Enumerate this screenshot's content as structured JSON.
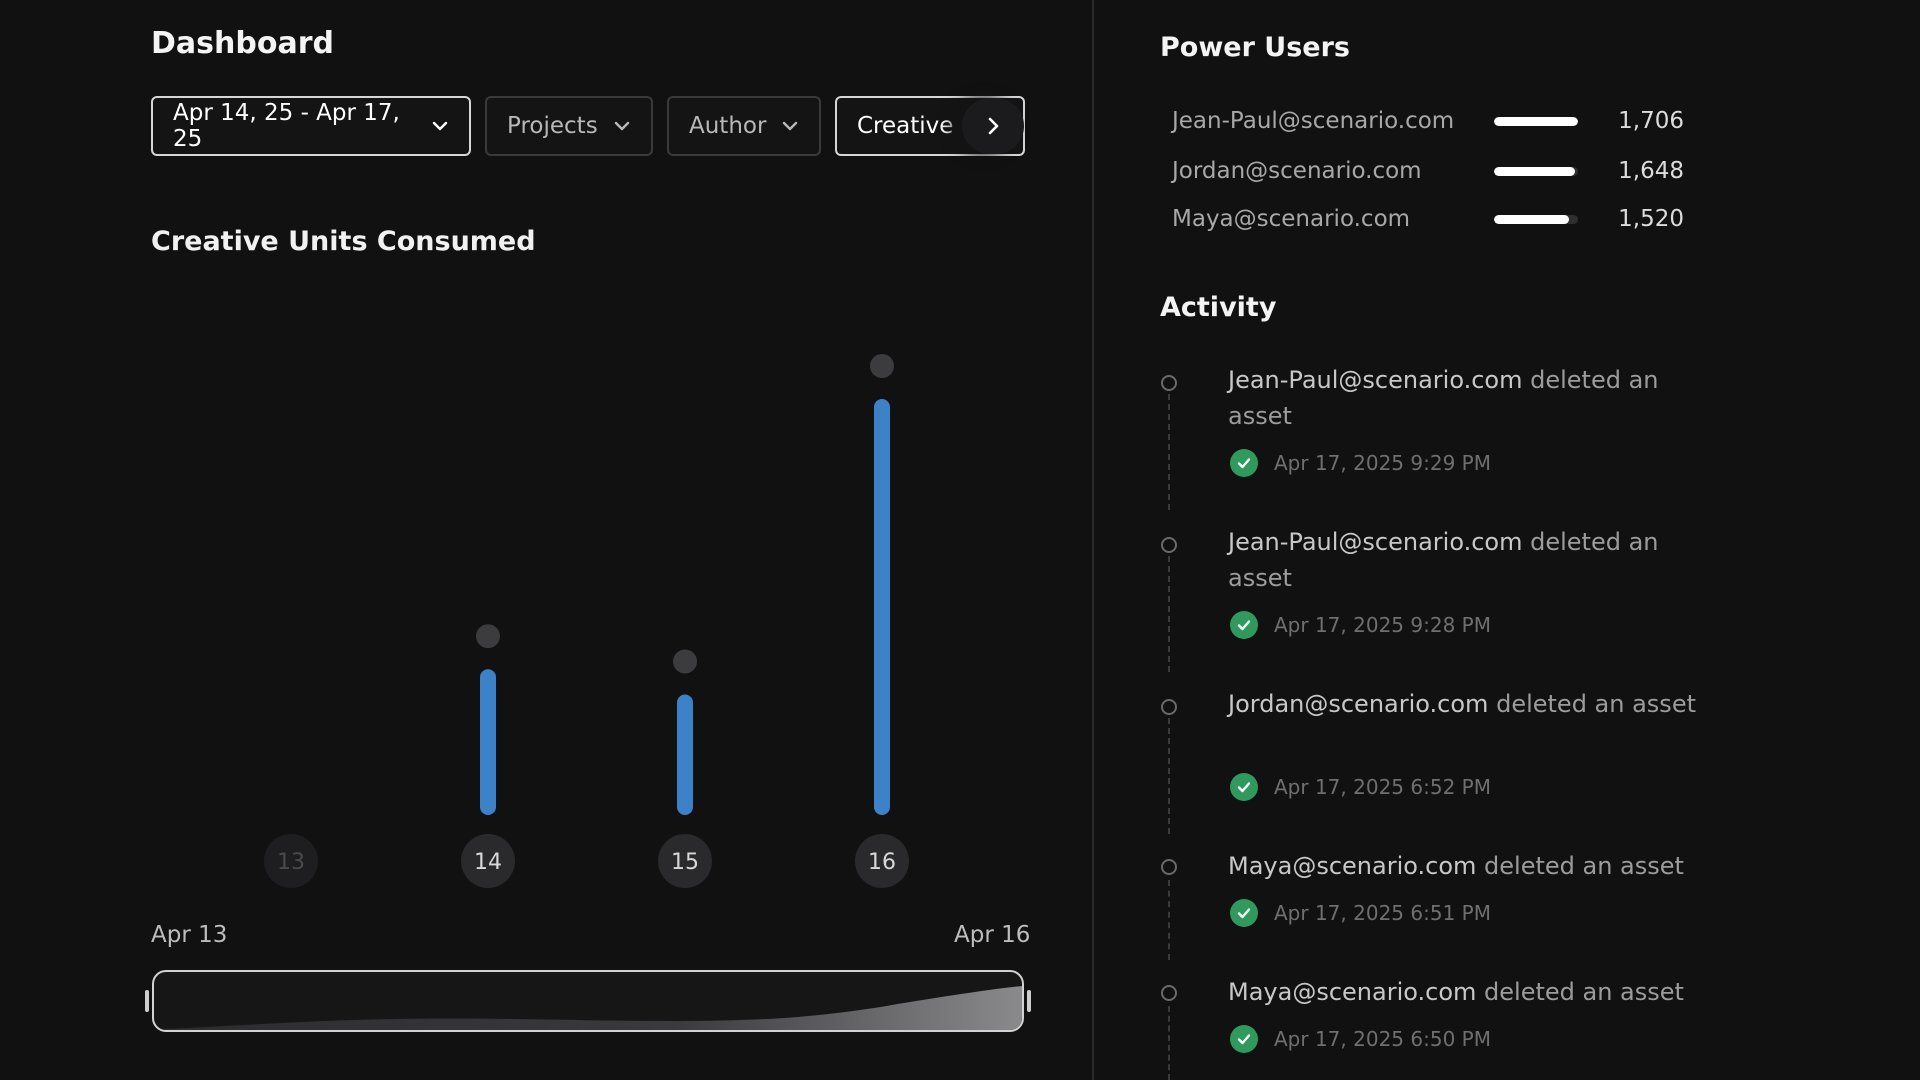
{
  "header": {
    "title": "Dashboard"
  },
  "filters": {
    "date_range": "Apr 14, 25 - Apr 17, 25",
    "projects": "Projects",
    "author": "Author",
    "creative": "Creative"
  },
  "chart_section": {
    "title": "Creative Units Consumed"
  },
  "chart_data": {
    "type": "bar",
    "categories": [
      "13",
      "14",
      "15",
      "16"
    ],
    "values": [
      0,
      318,
      256,
      980
    ],
    "ylim": [
      0,
      1100
    ],
    "grid": false,
    "colors": {
      "bar": "#3b82c8",
      "marker": "#3c3c3e",
      "label_bg": "#2a2a2c",
      "label_text": "#d8d8d8"
    }
  },
  "range": {
    "start": "Apr 13",
    "end": "Apr 16"
  },
  "power_users": {
    "title": "Power Users",
    "max": 1706,
    "items": [
      {
        "email": "Jean-Paul@scenario.com",
        "value": "1,706",
        "amount": 1706
      },
      {
        "email": "Jordan@scenario.com",
        "value": "1,648",
        "amount": 1648
      },
      {
        "email": "Maya@scenario.com",
        "value": "1,520",
        "amount": 1520
      }
    ]
  },
  "activity": {
    "title": "Activity",
    "items": [
      {
        "user": "Jean-Paul@scenario.com",
        "action": "deleted an asset",
        "time": "Apr 17, 2025 9:29 PM"
      },
      {
        "user": "Jean-Paul@scenario.com",
        "action": "deleted an asset",
        "time": "Apr 17, 2025 9:28 PM"
      },
      {
        "user": "Jordan@scenario.com",
        "action": "deleted an asset",
        "time": "Apr 17, 2025 6:52 PM"
      },
      {
        "user": "Maya@scenario.com",
        "action": "deleted an asset",
        "time": "Apr 17, 2025 6:51 PM"
      },
      {
        "user": "Maya@scenario.com",
        "action": "deleted an asset",
        "time": "Apr 17, 2025 6:50 PM"
      }
    ]
  },
  "colors": {
    "background": "#111112",
    "accent": "#3b82c8",
    "success": "#2e9a5c"
  }
}
